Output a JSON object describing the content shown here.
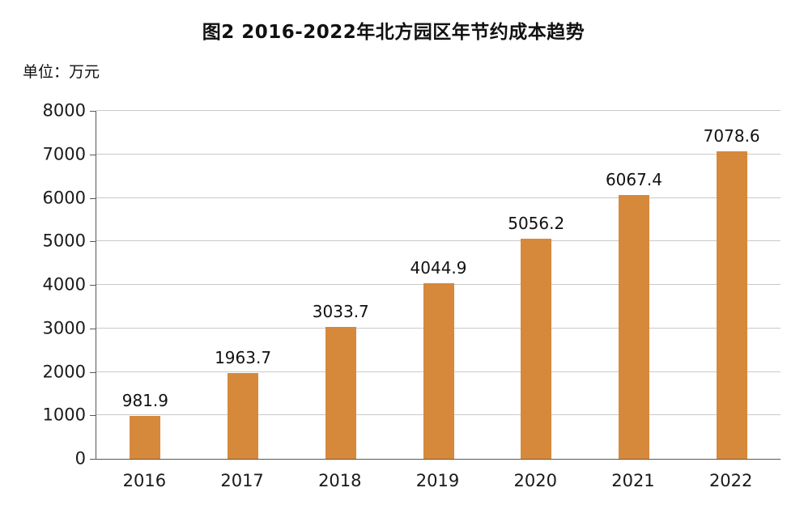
{
  "chart_data": {
    "type": "bar",
    "title": "图2 2016-2022年北方园区年节约成本趋势",
    "unit_label": "单位：万元",
    "categories": [
      "2016",
      "2017",
      "2018",
      "2019",
      "2020",
      "2021",
      "2022"
    ],
    "values": [
      981.9,
      1963.7,
      3033.7,
      4044.9,
      5056.2,
      6067.4,
      7078.6
    ],
    "value_labels": [
      "981.9",
      "1963.7",
      "3033.7",
      "4044.9",
      "5056.2",
      "6067.4",
      "7078.6"
    ],
    "xlabel": "",
    "ylabel": "",
    "ylim": [
      0,
      8000
    ],
    "yticks": [
      0,
      1000,
      2000,
      3000,
      4000,
      5000,
      6000,
      7000,
      8000
    ],
    "bar_color": "#d6893b",
    "grid": true,
    "legend_position": "none"
  }
}
